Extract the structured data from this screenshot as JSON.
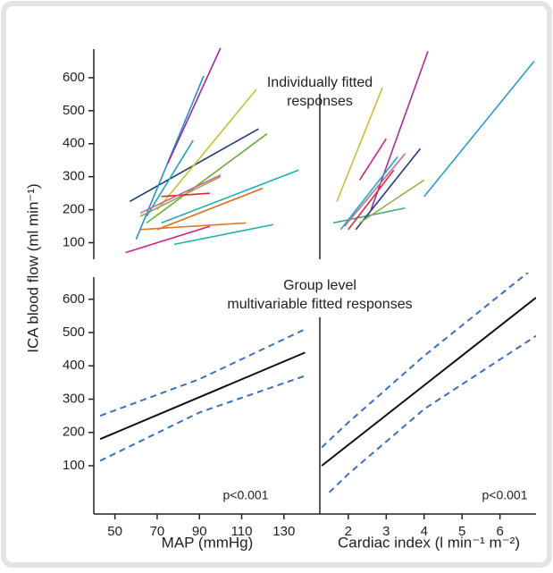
{
  "chart_data": [
    {
      "type": "line",
      "ylabel": "ICA blood flow (ml min⁻¹)",
      "title": [
        "Individually fitted",
        "responses"
      ],
      "xlim": [
        40,
        147
      ],
      "ylim": [
        50,
        700
      ],
      "yticks": [
        100,
        200,
        300,
        400,
        500,
        600
      ],
      "series": [
        {
          "color": "#d0208a",
          "x": [
            55,
            95
          ],
          "values": [
            70,
            150
          ]
        },
        {
          "color": "#1fb0a8",
          "x": [
            78,
            125
          ],
          "values": [
            95,
            155
          ]
        },
        {
          "color": "#e07a20",
          "x": [
            62,
            112
          ],
          "values": [
            140,
            160
          ]
        },
        {
          "color": "#1f3d7a",
          "x": [
            57,
            118
          ],
          "values": [
            225,
            445
          ]
        },
        {
          "color": "#2a8ed0",
          "x": [
            60,
            92
          ],
          "values": [
            110,
            605
          ]
        },
        {
          "color": "#9a2a9a",
          "x": [
            75,
            100
          ],
          "values": [
            340,
            690
          ]
        },
        {
          "color": "#c8c030",
          "x": [
            70,
            117
          ],
          "values": [
            200,
            565
          ]
        },
        {
          "color": "#6aaa3a",
          "x": [
            65,
            122
          ],
          "values": [
            160,
            430
          ]
        },
        {
          "color": "#18b0b0",
          "x": [
            72,
            137
          ],
          "values": [
            160,
            320
          ]
        },
        {
          "color": "#e06a20",
          "x": [
            70,
            120
          ],
          "values": [
            140,
            265
          ]
        },
        {
          "color": "#9aaa40",
          "x": [
            62,
            100
          ],
          "values": [
            180,
            300
          ]
        },
        {
          "color": "#d03030",
          "x": [
            72,
            95
          ],
          "values": [
            240,
            250
          ]
        },
        {
          "color": "#20a0c0",
          "x": [
            65,
            87
          ],
          "values": [
            180,
            410
          ]
        },
        {
          "color": "#d060a0",
          "x": [
            62,
            100
          ],
          "values": [
            190,
            305
          ]
        }
      ]
    },
    {
      "type": "line",
      "xlim": [
        1.25,
        6.95
      ],
      "ylim": [
        50,
        700
      ],
      "series": [
        {
          "color": "#2a9ad0",
          "x": [
            4.0,
            6.9
          ],
          "values": [
            240,
            650
          ]
        },
        {
          "color": "#a030a0",
          "x": [
            2.6,
            4.1
          ],
          "values": [
            200,
            680
          ]
        },
        {
          "color": "#c8c030",
          "x": [
            1.7,
            2.9
          ],
          "values": [
            225,
            570
          ]
        },
        {
          "color": "#d0208a",
          "x": [
            2.3,
            3.0
          ],
          "values": [
            290,
            415
          ]
        },
        {
          "color": "#3ab070",
          "x": [
            1.6,
            3.5
          ],
          "values": [
            160,
            205
          ]
        },
        {
          "color": "#1f3d7a",
          "x": [
            2.2,
            3.9
          ],
          "values": [
            140,
            385
          ]
        },
        {
          "color": "#9aaa40",
          "x": [
            2.3,
            4.0
          ],
          "values": [
            160,
            290
          ]
        },
        {
          "color": "#18b0b0",
          "x": [
            1.8,
            3.3
          ],
          "values": [
            140,
            360
          ]
        },
        {
          "color": "#d03030",
          "x": [
            2.0,
            3.2
          ],
          "values": [
            140,
            320
          ]
        },
        {
          "color": "#d060a0",
          "x": [
            1.9,
            3.5
          ],
          "values": [
            150,
            370
          ]
        }
      ]
    },
    {
      "type": "line",
      "title": [
        "Group level",
        "multivariable fitted responses"
      ],
      "note": "p<0.001",
      "xlabel": "MAP (mmHg)",
      "xlim": [
        40,
        147
      ],
      "ylim": [
        -45,
        680
      ],
      "xticks": [
        50,
        70,
        90,
        110,
        130
      ],
      "yticks": [
        100,
        200,
        300,
        400,
        500,
        600
      ],
      "series": [
        {
          "color": "#111111",
          "x": [
            43,
            140
          ],
          "values": [
            180,
            440
          ]
        },
        {
          "color": "#3a6fc0",
          "dashed": true,
          "x": [
            43,
            90,
            140
          ],
          "values": [
            250,
            360,
            510
          ]
        },
        {
          "color": "#3a6fc0",
          "dashed": true,
          "x": [
            43,
            90,
            140
          ],
          "values": [
            115,
            260,
            370
          ]
        }
      ]
    },
    {
      "type": "line",
      "note": "p<0.001",
      "xlabel": "Cardiac index (l min⁻¹ m⁻²)",
      "xlim": [
        1.25,
        6.95
      ],
      "xticks": [
        2,
        3,
        4,
        5,
        6
      ],
      "ylim": [
        -45,
        680
      ],
      "series": [
        {
          "color": "#111111",
          "x": [
            1.3,
            6.95
          ],
          "values": [
            100,
            605
          ]
        },
        {
          "color": "#3a6fc0",
          "dashed": true,
          "x": [
            1.3,
            2,
            4,
            6.95
          ],
          "values": [
            155,
            230,
            430,
            700
          ]
        },
        {
          "color": "#3a6fc0",
          "dashed": true,
          "x": [
            1.5,
            2,
            4,
            6.95
          ],
          "values": [
            20,
            75,
            270,
            490
          ]
        }
      ]
    }
  ]
}
